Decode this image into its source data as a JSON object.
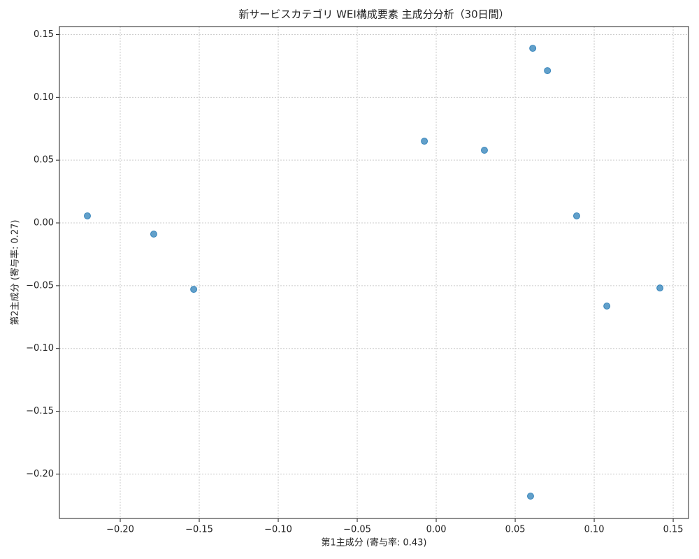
{
  "chart_data": {
    "type": "scatter",
    "title": "新サービスカテゴリ WEI構成要素 主成分分析（30日間）",
    "x_label": "第1主成分 (寄与率: 0.43)",
    "y_label": "第2主成分 (寄与率: 0.27)",
    "x": [
      -0.2208,
      -0.1788,
      -0.1535,
      -0.0075,
      0.0305,
      0.0611,
      0.0704,
      0.0889,
      0.108,
      0.1416,
      0.0597
    ],
    "values": [
      0.0056,
      -0.0089,
      -0.0529,
      0.0651,
      0.0579,
      0.1391,
      0.1213,
      0.0056,
      -0.0662,
      -0.0518,
      -0.2176
    ],
    "color": "#1f77b4",
    "xlim": [
      -0.2385,
      0.1597
    ],
    "ylim": [
      -0.2354,
      0.1564
    ],
    "xticks": [
      {
        "value": -0.2,
        "label": "−0.20"
      },
      {
        "value": -0.15,
        "label": "−0.15"
      },
      {
        "value": -0.1,
        "label": "−0.10"
      },
      {
        "value": -0.05,
        "label": "−0.05"
      },
      {
        "value": 0,
        "label": "0.00"
      },
      {
        "value": 0.05,
        "label": "0.05"
      },
      {
        "value": 0.1,
        "label": "0.10"
      },
      {
        "value": 0.15,
        "label": "0.15"
      }
    ],
    "yticks": [
      {
        "value": -0.2,
        "label": "−0.20"
      },
      {
        "value": -0.15,
        "label": "−0.15"
      },
      {
        "value": -0.1,
        "label": "−0.10"
      },
      {
        "value": -0.05,
        "label": "−0.05"
      },
      {
        "value": 0,
        "label": "0.00"
      },
      {
        "value": 0.05,
        "label": "0.05"
      },
      {
        "value": 0.1,
        "label": "0.10"
      },
      {
        "value": 0.15,
        "label": "0.15"
      }
    ],
    "grid": true
  }
}
